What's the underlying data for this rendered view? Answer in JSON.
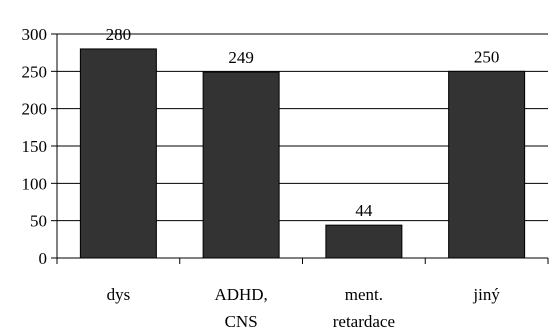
{
  "chart_data": {
    "type": "bar",
    "categories": [
      [
        "dys"
      ],
      [
        "ADHD,",
        "CNS"
      ],
      [
        "ment.",
        "retardace"
      ],
      [
        "jiný"
      ]
    ],
    "values": [
      280,
      249,
      44,
      250
    ],
    "data_labels": [
      "280",
      "249",
      "44",
      "250"
    ],
    "title": "",
    "xlabel": "",
    "ylabel": "",
    "ylim": [
      0,
      300
    ],
    "yticks": [
      0,
      50,
      100,
      150,
      200,
      250,
      300
    ],
    "grid": true,
    "legend": "none",
    "colors": {
      "bar": "#333333",
      "bar_outline": "#000000",
      "grid": "#000000",
      "axis": "#000000",
      "background": "#ffffff"
    }
  }
}
